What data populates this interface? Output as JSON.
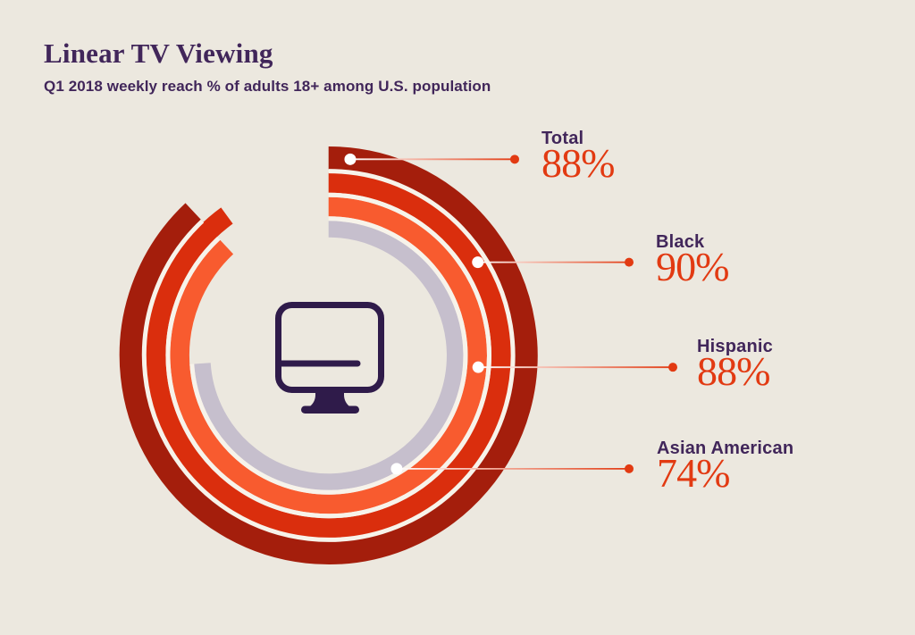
{
  "header": {
    "title": "Linear TV Viewing",
    "subtitle": "Q1 2018 weekly reach % of adults 18+ among U.S. population"
  },
  "chart_data": {
    "type": "radial-bar",
    "title": "Linear TV Viewing",
    "subtitle": "Q1 2018 weekly reach % of adults 18+ among U.S. population",
    "unit": "%",
    "scale_max": 100,
    "start_angle": "12-o'clock",
    "direction": "clockwise",
    "ring_order_outer_to_inner": [
      "Total",
      "Black",
      "Hispanic",
      "Asian American"
    ],
    "categories": [
      "Total",
      "Black",
      "Hispanic",
      "Asian American"
    ],
    "values": [
      88,
      90,
      88,
      74
    ],
    "series": [
      {
        "label": "Total",
        "value": 88,
        "value_label": "88%",
        "ring_color": "#a41e0c"
      },
      {
        "label": "Black",
        "value": 90,
        "value_label": "90%",
        "ring_color": "#da2e0d"
      },
      {
        "label": "Hispanic",
        "value": 88,
        "value_label": "88%",
        "ring_color": "#f85b2f"
      },
      {
        "label": "Asian American",
        "value": 74,
        "value_label": "74%",
        "ring_color": "#c6bfcd"
      }
    ],
    "center_icon": "desktop-monitor",
    "legend_position": "right",
    "colors": {
      "background": "#ece8df",
      "value_text": "#e23a12",
      "label_text": "#41265a",
      "icon": "#2f1b4a",
      "ring_separator": "#f7f3ea",
      "marker_dot": "#ffffff",
      "leader_dot": "#e23a12"
    }
  }
}
